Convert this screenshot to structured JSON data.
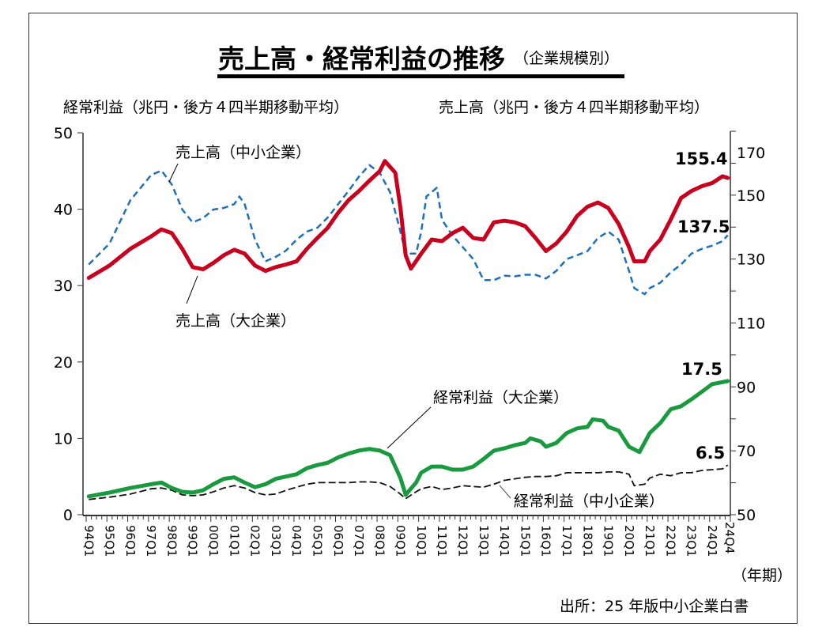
{
  "chart_data": {
    "type": "line",
    "title": "売上高・経常利益の推移",
    "subtitle": "（企業規模別）",
    "ylabel_left": "経常利益（兆円・後方４四半期移動平均）",
    "ylabel_right": "売上高（兆円・後方４四半期移動平均）",
    "xlabel": "（年期）",
    "source": "出所：25 年版中小企業白書",
    "ylim_left": [
      0,
      50
    ],
    "ylim_right": [
      50,
      170
    ],
    "yticks_left": [
      "0",
      "10",
      "20",
      "30",
      "40",
      "50"
    ],
    "yticks_right": [
      "50",
      "70",
      "90",
      "110",
      "130",
      "150",
      "170"
    ],
    "xticks": [
      "94Q1",
      "95Q1",
      "96Q1",
      "97Q1",
      "98Q1",
      "99Q1",
      "00Q1",
      "01Q1",
      "02Q1",
      "03Q1",
      "04Q1",
      "05Q1",
      "06Q1",
      "07Q1",
      "08Q1",
      "09Q1",
      "10Q1",
      "11Q1",
      "12Q1",
      "13Q1",
      "14Q1",
      "15Q1",
      "16Q1",
      "17Q1",
      "18Q1",
      "19Q1",
      "20Q1",
      "21Q1",
      "22Q1",
      "23Q1",
      "24Q1",
      "24Q4"
    ],
    "grid": false,
    "series": [
      {
        "name": "売上高（中小企業）",
        "axis": "right",
        "color": "#1f6fbf",
        "style": "dashed",
        "end_label": "137.5",
        "points": [
          [
            "94Q1",
            128.3
          ],
          [
            "95Q1",
            134.9
          ],
          [
            "96Q1",
            148.4
          ],
          [
            "97Q1",
            156.3
          ],
          [
            "97Q3",
            157.7
          ],
          [
            "98Q1",
            153.3
          ],
          [
            "98Q3",
            145.5
          ],
          [
            "99Q1",
            141.5
          ],
          [
            "99Q3",
            142.8
          ],
          [
            "00Q1",
            145.5
          ],
          [
            "00Q3",
            146.0
          ],
          [
            "01Q1",
            147.2
          ],
          [
            "01Q2",
            149.6
          ],
          [
            "01Q3",
            147.2
          ],
          [
            "02Q1",
            136.1
          ],
          [
            "02Q3",
            129.3
          ],
          [
            "03Q1",
            130.7
          ],
          [
            "03Q3",
            132.7
          ],
          [
            "04Q1",
            136.1
          ],
          [
            "04Q3",
            138.6
          ],
          [
            "05Q1",
            139.8
          ],
          [
            "05Q3",
            143.0
          ],
          [
            "06Q1",
            147.2
          ],
          [
            "06Q3",
            151.3
          ],
          [
            "07Q1",
            155.8
          ],
          [
            "07Q3",
            159.4
          ],
          [
            "08Q1",
            157.0
          ],
          [
            "08Q3",
            150.9
          ],
          [
            "09Q1",
            138.6
          ],
          [
            "09Q2",
            131.7
          ],
          [
            "09Q4",
            131.7
          ],
          [
            "10Q1",
            138.6
          ],
          [
            "10Q2",
            149.6
          ],
          [
            "10Q4",
            152.3
          ],
          [
            "11Q1",
            142.3
          ],
          [
            "11Q3",
            137.4
          ],
          [
            "12Q1",
            133.7
          ],
          [
            "12Q3",
            130.0
          ],
          [
            "13Q1",
            123.4
          ],
          [
            "13Q3",
            123.4
          ],
          [
            "14Q1",
            124.8
          ],
          [
            "14Q3",
            124.6
          ],
          [
            "15Q1",
            125.1
          ],
          [
            "15Q3",
            125.1
          ],
          [
            "16Q1",
            123.9
          ],
          [
            "16Q3",
            126.3
          ],
          [
            "17Q1",
            130.0
          ],
          [
            "17Q3",
            131.2
          ],
          [
            "18Q1",
            132.5
          ],
          [
            "18Q3",
            136.6
          ],
          [
            "19Q1",
            138.6
          ],
          [
            "19Q3",
            136.1
          ],
          [
            "20Q1",
            126.3
          ],
          [
            "20Q2",
            120.9
          ],
          [
            "20Q4",
            119.0
          ],
          [
            "21Q1",
            120.9
          ],
          [
            "21Q3",
            122.6
          ],
          [
            "22Q1",
            125.8
          ],
          [
            "22Q3",
            128.3
          ],
          [
            "23Q1",
            131.7
          ],
          [
            "23Q3",
            133.2
          ],
          [
            "24Q1",
            134.2
          ],
          [
            "24Q3",
            135.6
          ],
          [
            "24Q4",
            137.5
          ]
        ]
      },
      {
        "name": "売上高（大企業）",
        "axis": "right",
        "color": "#c8001e",
        "style": "solid",
        "end_label": "155.4",
        "points": [
          [
            "94Q1",
            124.1
          ],
          [
            "95Q1",
            128.0
          ],
          [
            "96Q1",
            133.2
          ],
          [
            "97Q1",
            137.1
          ],
          [
            "97Q3",
            139.3
          ],
          [
            "98Q1",
            138.1
          ],
          [
            "98Q3",
            133.2
          ],
          [
            "99Q1",
            127.5
          ],
          [
            "99Q3",
            126.8
          ],
          [
            "00Q1",
            128.8
          ],
          [
            "00Q3",
            131.2
          ],
          [
            "01Q1",
            132.9
          ],
          [
            "01Q3",
            131.7
          ],
          [
            "02Q1",
            128.0
          ],
          [
            "02Q3",
            126.3
          ],
          [
            "03Q1",
            127.5
          ],
          [
            "03Q3",
            128.3
          ],
          [
            "04Q1",
            129.3
          ],
          [
            "04Q3",
            133.2
          ],
          [
            "05Q1",
            136.6
          ],
          [
            "05Q3",
            139.8
          ],
          [
            "06Q1",
            144.5
          ],
          [
            "06Q3",
            148.4
          ],
          [
            "07Q1",
            151.3
          ],
          [
            "07Q3",
            154.5
          ],
          [
            "08Q1",
            157.5
          ],
          [
            "08Q2",
            160.7
          ],
          [
            "08Q4",
            157.0
          ],
          [
            "09Q1",
            146.0
          ],
          [
            "09Q2",
            131.2
          ],
          [
            "09Q3",
            127.0
          ],
          [
            "10Q1",
            131.7
          ],
          [
            "10Q3",
            136.1
          ],
          [
            "11Q1",
            135.6
          ],
          [
            "11Q3",
            138.1
          ],
          [
            "12Q1",
            139.8
          ],
          [
            "12Q3",
            136.6
          ],
          [
            "13Q1",
            136.1
          ],
          [
            "13Q3",
            141.5
          ],
          [
            "14Q1",
            142.0
          ],
          [
            "14Q3",
            141.5
          ],
          [
            "15Q1",
            140.3
          ],
          [
            "15Q3",
            136.6
          ],
          [
            "16Q1",
            132.5
          ],
          [
            "16Q3",
            134.9
          ],
          [
            "17Q1",
            138.6
          ],
          [
            "17Q3",
            143.5
          ],
          [
            "18Q1",
            146.4
          ],
          [
            "18Q3",
            147.7
          ],
          [
            "19Q1",
            146.0
          ],
          [
            "19Q3",
            141.0
          ],
          [
            "20Q1",
            133.7
          ],
          [
            "20Q2",
            129.3
          ],
          [
            "20Q4",
            129.3
          ],
          [
            "21Q1",
            132.5
          ],
          [
            "21Q3",
            136.1
          ],
          [
            "22Q1",
            142.3
          ],
          [
            "22Q3",
            149.1
          ],
          [
            "23Q1",
            151.3
          ],
          [
            "23Q3",
            152.8
          ],
          [
            "24Q1",
            153.8
          ],
          [
            "24Q3",
            155.9
          ],
          [
            "24Q4",
            155.4
          ]
        ]
      },
      {
        "name": "経常利益（大企業）",
        "axis": "left",
        "color": "#1a9a3e",
        "style": "solid",
        "end_label": "17.5",
        "points": [
          [
            "94Q1",
            2.4
          ],
          [
            "95Q1",
            2.9
          ],
          [
            "96Q1",
            3.5
          ],
          [
            "97Q1",
            4.0
          ],
          [
            "97Q3",
            4.2
          ],
          [
            "98Q1",
            3.5
          ],
          [
            "98Q3",
            3.0
          ],
          [
            "99Q1",
            2.9
          ],
          [
            "99Q3",
            3.2
          ],
          [
            "00Q1",
            4.0
          ],
          [
            "00Q3",
            4.7
          ],
          [
            "01Q1",
            4.9
          ],
          [
            "01Q3",
            4.2
          ],
          [
            "02Q1",
            3.6
          ],
          [
            "02Q3",
            4.0
          ],
          [
            "03Q1",
            4.7
          ],
          [
            "03Q3",
            5.0
          ],
          [
            "04Q1",
            5.3
          ],
          [
            "04Q3",
            6.1
          ],
          [
            "05Q1",
            6.5
          ],
          [
            "05Q3",
            6.8
          ],
          [
            "06Q1",
            7.5
          ],
          [
            "06Q3",
            8.0
          ],
          [
            "07Q1",
            8.4
          ],
          [
            "07Q3",
            8.6
          ],
          [
            "08Q1",
            8.4
          ],
          [
            "08Q3",
            7.8
          ],
          [
            "09Q1",
            4.8
          ],
          [
            "09Q2",
            2.6
          ],
          [
            "09Q4",
            4.2
          ],
          [
            "10Q1",
            5.5
          ],
          [
            "10Q3",
            6.3
          ],
          [
            "11Q1",
            6.3
          ],
          [
            "11Q3",
            5.9
          ],
          [
            "12Q1",
            5.9
          ],
          [
            "12Q3",
            6.3
          ],
          [
            "13Q1",
            7.3
          ],
          [
            "13Q3",
            8.4
          ],
          [
            "14Q1",
            8.7
          ],
          [
            "14Q3",
            9.1
          ],
          [
            "15Q1",
            9.4
          ],
          [
            "15Q2",
            10.0
          ],
          [
            "15Q4",
            9.6
          ],
          [
            "16Q1",
            8.9
          ],
          [
            "16Q3",
            9.4
          ],
          [
            "17Q1",
            10.7
          ],
          [
            "17Q3",
            11.3
          ],
          [
            "18Q1",
            11.5
          ],
          [
            "18Q2",
            12.5
          ],
          [
            "18Q4",
            12.3
          ],
          [
            "19Q1",
            11.5
          ],
          [
            "19Q3",
            11.0
          ],
          [
            "20Q1",
            8.9
          ],
          [
            "20Q3",
            8.2
          ],
          [
            "21Q1",
            10.7
          ],
          [
            "21Q3",
            12.0
          ],
          [
            "22Q1",
            13.8
          ],
          [
            "22Q3",
            14.2
          ],
          [
            "23Q1",
            15.1
          ],
          [
            "23Q3",
            16.1
          ],
          [
            "24Q1",
            17.1
          ],
          [
            "24Q4",
            17.5
          ]
        ]
      },
      {
        "name": "経常利益（中小企業）",
        "axis": "left",
        "color": "#111111",
        "style": "dashed",
        "end_label": "6.5",
        "points": [
          [
            "94Q1",
            2.0
          ],
          [
            "95Q1",
            2.3
          ],
          [
            "96Q1",
            2.7
          ],
          [
            "97Q1",
            3.4
          ],
          [
            "97Q3",
            3.5
          ],
          [
            "98Q1",
            3.2
          ],
          [
            "98Q3",
            2.6
          ],
          [
            "99Q1",
            2.5
          ],
          [
            "99Q3",
            2.6
          ],
          [
            "00Q1",
            3.0
          ],
          [
            "00Q3",
            3.5
          ],
          [
            "01Q1",
            3.8
          ],
          [
            "01Q3",
            3.5
          ],
          [
            "02Q1",
            2.9
          ],
          [
            "02Q3",
            2.6
          ],
          [
            "03Q1",
            2.7
          ],
          [
            "03Q3",
            3.2
          ],
          [
            "04Q1",
            3.6
          ],
          [
            "04Q3",
            4.0
          ],
          [
            "05Q1",
            4.2
          ],
          [
            "05Q3",
            4.2
          ],
          [
            "06Q1",
            4.2
          ],
          [
            "06Q3",
            4.2
          ],
          [
            "07Q1",
            4.3
          ],
          [
            "07Q3",
            4.3
          ],
          [
            "08Q1",
            4.2
          ],
          [
            "08Q3",
            3.7
          ],
          [
            "09Q1",
            2.7
          ],
          [
            "09Q2",
            2.1
          ],
          [
            "09Q4",
            3.0
          ],
          [
            "10Q1",
            3.4
          ],
          [
            "10Q3",
            3.7
          ],
          [
            "11Q1",
            3.3
          ],
          [
            "11Q3",
            3.5
          ],
          [
            "12Q1",
            3.8
          ],
          [
            "12Q3",
            3.7
          ],
          [
            "13Q1",
            3.6
          ],
          [
            "13Q3",
            4.0
          ],
          [
            "14Q1",
            4.5
          ],
          [
            "14Q3",
            4.7
          ],
          [
            "15Q1",
            4.9
          ],
          [
            "15Q3",
            5.0
          ],
          [
            "16Q1",
            5.0
          ],
          [
            "16Q3",
            5.1
          ],
          [
            "17Q1",
            5.5
          ],
          [
            "17Q3",
            5.5
          ],
          [
            "18Q1",
            5.5
          ],
          [
            "18Q3",
            5.5
          ],
          [
            "19Q1",
            5.6
          ],
          [
            "19Q3",
            5.6
          ],
          [
            "20Q1",
            5.3
          ],
          [
            "20Q2",
            3.8
          ],
          [
            "20Q4",
            4.0
          ],
          [
            "21Q1",
            4.8
          ],
          [
            "21Q3",
            5.3
          ],
          [
            "22Q1",
            5.1
          ],
          [
            "22Q3",
            5.5
          ],
          [
            "23Q1",
            5.5
          ],
          [
            "23Q3",
            5.8
          ],
          [
            "24Q1",
            5.9
          ],
          [
            "24Q3",
            6.0
          ],
          [
            "24Q4",
            6.5
          ]
        ]
      }
    ]
  }
}
